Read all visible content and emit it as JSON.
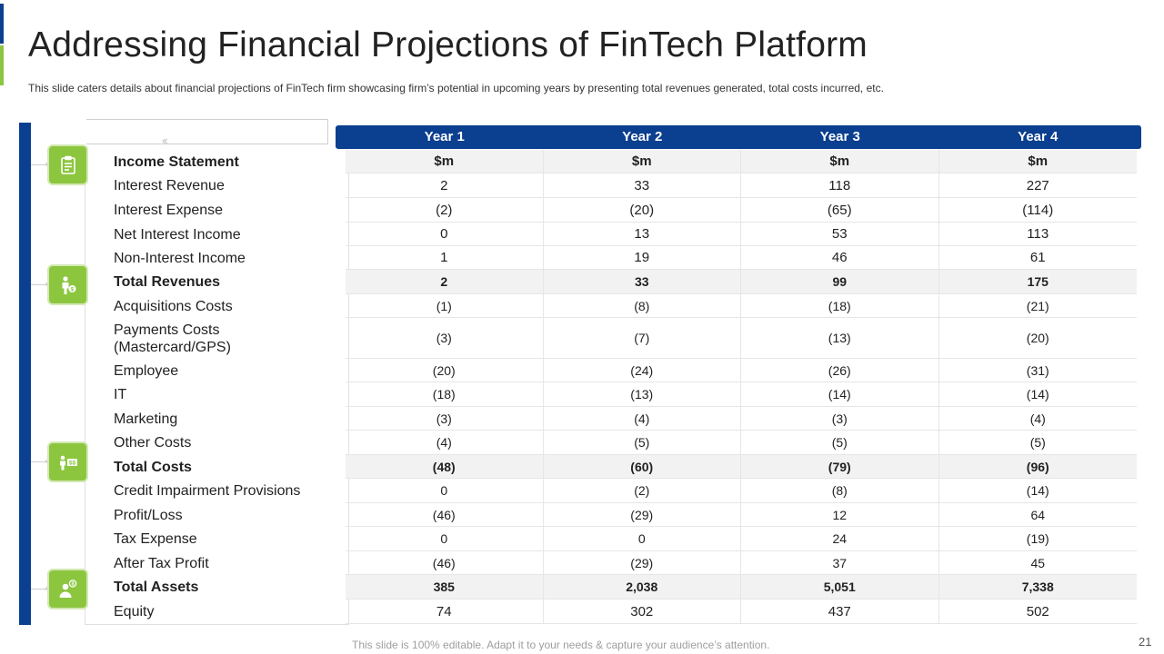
{
  "slide": {
    "title": "Addressing Financial Projections of FinTech Platform",
    "subtitle": "This slide caters details about financial projections of FinTech firm showcasing firm’s potential in upcoming years by presenting total revenues  generated,  total costs incurred, etc.",
    "footer": "This slide is 100% editable. Adapt it to your needs & capture your audience’s attention.",
    "page_number": "21",
    "colors": {
      "primary": "#0b3f8f",
      "accent": "#8cc63f"
    }
  },
  "icons": [
    "clipboard-icon",
    "person-money-icon",
    "cash-exchange-icon",
    "person-dollar-icon"
  ],
  "table": {
    "headers": [
      "Year 1",
      "Year 2",
      "Year 3",
      "Year 4"
    ],
    "rows": [
      {
        "label": "Income Statement",
        "values": [
          "$m",
          "$m",
          "$m",
          "$m"
        ]
      },
      {
        "label": "Interest  Revenue",
        "values": [
          "2",
          "33",
          "118",
          "227"
        ]
      },
      {
        "label": "Interest   Expense",
        "values": [
          "(2)",
          "(20)",
          "(65)",
          "(114)"
        ]
      },
      {
        "label": "Net Interest Income",
        "values": [
          "0",
          "13",
          "53",
          "113"
        ]
      },
      {
        "label": "Non-Interest  Income",
        "values": [
          "1",
          "19",
          "46",
          "61"
        ]
      },
      {
        "label": "Total Revenues",
        "values": [
          "2",
          "33",
          "99",
          "175"
        ]
      },
      {
        "label": "Acquisitions Costs",
        "values": [
          "(1)",
          "(8)",
          "(18)",
          "(21)"
        ]
      },
      {
        "label": "Payments Costs\n(Mastercard/GPS)",
        "values": [
          "(3)",
          "(7)",
          "(13)",
          "(20)"
        ]
      },
      {
        "label": "Employee",
        "values": [
          "(20)",
          "(24)",
          "(26)",
          "(31)"
        ]
      },
      {
        "label": "IT",
        "values": [
          "(18)",
          "(13)",
          "(14)",
          "(14)"
        ]
      },
      {
        "label": "Marketing",
        "values": [
          "(3)",
          "(4)",
          "(3)",
          "(4)"
        ]
      },
      {
        "label": "Other Costs",
        "values": [
          "(4)",
          "(5)",
          "(5)",
          "(5)"
        ]
      },
      {
        "label": "Total Costs",
        "values": [
          "(48)",
          "(60)",
          "(79)",
          "(96)"
        ]
      },
      {
        "label": "Credit Impairment  Provisions",
        "values": [
          "0",
          "(2)",
          "(8)",
          "(14)"
        ]
      },
      {
        "label": "Profit/Loss",
        "values": [
          "(46)",
          "(29)",
          "12",
          "64"
        ]
      },
      {
        "label": "Tax Expense",
        "values": [
          "0",
          "0",
          "24",
          "(19)"
        ]
      },
      {
        "label": "After Tax Profit",
        "values": [
          "(46)",
          "(29)",
          "37",
          "45"
        ]
      },
      {
        "label": "Total Assets",
        "values": [
          "385",
          "2,038",
          "5,051",
          "7,338"
        ]
      },
      {
        "label": "Equity",
        "values": [
          "74",
          "302",
          "437",
          "502"
        ]
      }
    ]
  }
}
